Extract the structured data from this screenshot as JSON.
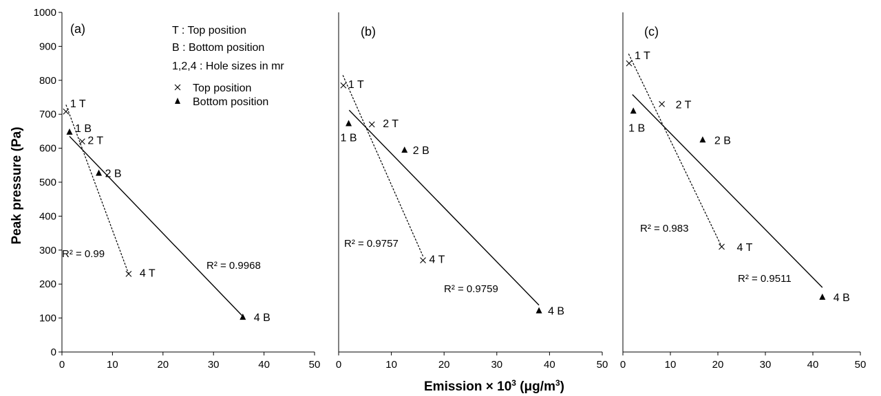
{
  "y_axis_title": "Peak pressure (Pa)",
  "x_axis_title_main": "Emission × 10",
  "x_axis_title_sup": "3",
  "x_axis_title_unit": " (μg/m",
  "x_axis_title_unit_sup": "3",
  "x_axis_title_close": ")",
  "legend": {
    "notes": [
      "T : Top position",
      "B : Bottom position",
      "1,2,4 : Hole sizes in mr"
    ],
    "series": [
      {
        "label": "Top position",
        "marker": "x"
      },
      {
        "label": "Bottom position",
        "marker": "triangle"
      }
    ]
  },
  "chart_data": [
    {
      "type": "scatter",
      "panel_label": "(a)",
      "xlim": [
        0,
        50
      ],
      "ylim": [
        0,
        1000
      ],
      "x_ticks": [
        0,
        10,
        20,
        30,
        40,
        50
      ],
      "y_ticks": [
        0,
        100,
        200,
        300,
        400,
        500,
        600,
        700,
        800,
        900,
        1000
      ],
      "series": [
        {
          "name": "Top position",
          "marker": "x",
          "points": [
            {
              "x": 0.8,
              "y": 708,
              "label": "1 T"
            },
            {
              "x": 4,
              "y": 620,
              "label": "2 T"
            },
            {
              "x": 13.2,
              "y": 230,
              "label": "4 T"
            }
          ],
          "trendline": {
            "style": "dashed",
            "x": [
              0.8,
              13.2
            ],
            "y": [
              728,
              230
            ],
            "r2": "R² = 0.99"
          }
        },
        {
          "name": "Bottom position",
          "marker": "triangle",
          "points": [
            {
              "x": 1.5,
              "y": 648,
              "label": "1 B"
            },
            {
              "x": 7.3,
              "y": 527,
              "label": "2 B"
            },
            {
              "x": 35.8,
              "y": 103,
              "label": "4 B"
            }
          ],
          "trendline": {
            "style": "solid",
            "x": [
              1.5,
              35.8
            ],
            "y": [
              635,
              105
            ],
            "r2": "R² = 0.9968"
          }
        }
      ]
    },
    {
      "type": "scatter",
      "panel_label": "(b)",
      "xlim": [
        0,
        50
      ],
      "ylim": [
        0,
        1000
      ],
      "x_ticks": [
        0,
        10,
        20,
        30,
        40,
        50
      ],
      "y_ticks": [],
      "series": [
        {
          "name": "Top position",
          "marker": "x",
          "points": [
            {
              "x": 0.9,
              "y": 785,
              "label": "1 T"
            },
            {
              "x": 6.3,
              "y": 670,
              "label": "2 T"
            },
            {
              "x": 16,
              "y": 270,
              "label": "4 T"
            }
          ],
          "trendline": {
            "style": "dashed",
            "x": [
              0.8,
              16
            ],
            "y": [
              815,
              282
            ],
            "r2": "R² = 0.9757"
          }
        },
        {
          "name": "Bottom position",
          "marker": "triangle",
          "points": [
            {
              "x": 1.9,
              "y": 673,
              "label": "1 B"
            },
            {
              "x": 12.5,
              "y": 595,
              "label": "2 B"
            },
            {
              "x": 38,
              "y": 122,
              "label": "4 B"
            }
          ],
          "trendline": {
            "style": "solid",
            "x": [
              2,
              38
            ],
            "y": [
              712,
              138
            ],
            "r2": "R² = 0.9759"
          }
        }
      ]
    },
    {
      "type": "scatter",
      "panel_label": "(c)",
      "xlim": [
        0,
        50
      ],
      "ylim": [
        0,
        1000
      ],
      "x_ticks": [
        0,
        10,
        20,
        30,
        40,
        50
      ],
      "y_ticks": [],
      "series": [
        {
          "name": "Top position",
          "marker": "x",
          "points": [
            {
              "x": 1.3,
              "y": 850,
              "label": "1 T"
            },
            {
              "x": 8.2,
              "y": 730,
              "label": "2 T"
            },
            {
              "x": 20.8,
              "y": 310,
              "label": "4 T"
            }
          ],
          "trendline": {
            "style": "dashed",
            "x": [
              1.2,
              20.8
            ],
            "y": [
              878,
              310
            ],
            "r2": "R² = 0.983"
          }
        },
        {
          "name": "Bottom position",
          "marker": "triangle",
          "points": [
            {
              "x": 2.2,
              "y": 710,
              "label": "1 B"
            },
            {
              "x": 16.8,
              "y": 625,
              "label": "2 B"
            },
            {
              "x": 42,
              "y": 162,
              "label": "4 B"
            }
          ],
          "trendline": {
            "style": "solid",
            "x": [
              2,
              42
            ],
            "y": [
              758,
              190
            ],
            "r2": "R² = 0.9511"
          }
        }
      ]
    }
  ]
}
